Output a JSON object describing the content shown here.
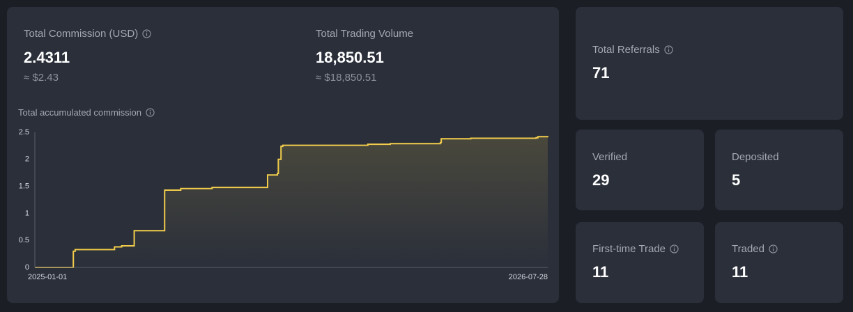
{
  "commission": {
    "label": "Total Commission (USD)",
    "value": "2.4311",
    "approx": "≈ $2.43"
  },
  "volume": {
    "label": "Total Trading Volume",
    "value": "18,850.51",
    "approx": "≈ $18,850.51"
  },
  "chart_data": {
    "type": "line",
    "title": "Total accumulated commission",
    "step": "after",
    "color": "#f2cd4b",
    "fill": true,
    "x": [
      "2025-01-01",
      "2025-02-13",
      "2025-02-15",
      "2025-03-31",
      "2025-04-08",
      "2025-04-22",
      "2025-05-26",
      "2025-06-13",
      "2025-07-18",
      "2025-09-18",
      "2025-09-29",
      "2025-09-30",
      "2025-10-03",
      "2025-10-05",
      "2026-01-08",
      "2026-02-02",
      "2026-03-30",
      "2026-03-31",
      "2026-05-03",
      "2026-07-15",
      "2026-07-17",
      "2026-07-28"
    ],
    "values": [
      0,
      0.3,
      0.33,
      0.38,
      0.4,
      0.68,
      1.43,
      1.46,
      1.48,
      1.71,
      1.74,
      2.0,
      2.24,
      2.26,
      2.28,
      2.29,
      2.31,
      2.38,
      2.39,
      2.4,
      2.42,
      2.4311
    ],
    "xlim": [
      "2025-01-01",
      "2026-07-28"
    ],
    "xticks": [
      "2025-01-01",
      "2026-07-28"
    ],
    "ylim": [
      0,
      2.5
    ],
    "yticks": [
      0,
      0.5,
      1,
      1.5,
      2,
      2.5
    ],
    "grid": false
  },
  "stats": [
    {
      "label": "Total Referrals",
      "value": "71"
    },
    {
      "label": "Verified",
      "value": "29"
    },
    {
      "label": "Deposited",
      "value": "5"
    },
    {
      "label": "First-time Trade",
      "value": "11"
    },
    {
      "label": "Traded",
      "value": "11"
    }
  ]
}
